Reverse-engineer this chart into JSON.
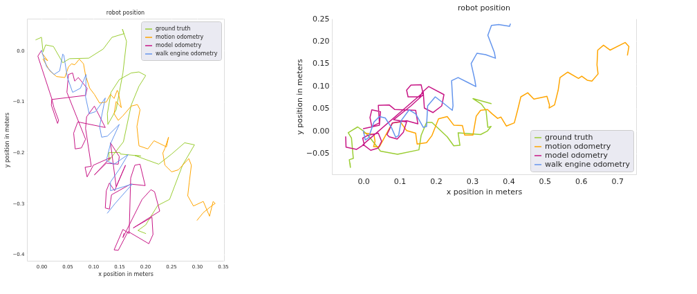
{
  "chart_data": [
    {
      "type": "line",
      "title": "robot position",
      "xlabel": "x position in meters",
      "ylabel": "y position in meters",
      "xlim": [
        -0.028,
        0.352
      ],
      "ylim": [
        -0.4125,
        0.0625
      ],
      "xticks": [
        {
          "value": 0,
          "label": "0.00"
        },
        0.05,
        {
          "value": 0.1,
          "label": "0.10"
        },
        0.15,
        {
          "value": 0.2,
          "label": "0.20"
        },
        0.25,
        {
          "value": 0.3,
          "label": "0.30"
        },
        0.35
      ],
      "yticks": [
        {
          "value": 0,
          "label": "0.0"
        },
        {
          "value": -0.1,
          "label": "−0.1"
        },
        {
          "value": -0.2,
          "label": "−0.2"
        },
        {
          "value": -0.3,
          "label": "−0.3"
        },
        {
          "value": -0.4,
          "label": "−0.4"
        }
      ],
      "grid": true,
      "legend": "top right",
      "marker": "none",
      "line_style": "solid",
      "series": [
        {
          "name": "ground truth",
          "color": "#9acd32",
          "x": [
            -0.011,
            0.0,
            0.003,
            0.008,
            0.023,
            0.041,
            0.054,
            0.091,
            0.119,
            0.136,
            0.159,
            0.156,
            0.164,
            0.157,
            0.15,
            0.144,
            0.128,
            0.127,
            0.134,
            0.15,
            0.173,
            0.188,
            0.201,
            0.188,
            0.173,
            0.158,
            0.142,
            0.13,
            0.13,
            0.151,
            0.152,
            0.192,
            0.18,
            0.226,
            0.251,
            0.276,
            0.295,
            0.272,
            0.247,
            0.224,
            0.201,
            0.186,
            0.201
          ],
          "values": [
            0.021,
            0.026,
            -0.003,
            0.011,
            0.008,
            -0.024,
            -0.016,
            -0.015,
            0.003,
            0.026,
            0.033,
            0.042,
            0.018,
            -0.044,
            -0.082,
            -0.116,
            -0.145,
            -0.124,
            -0.082,
            -0.057,
            -0.044,
            -0.042,
            -0.049,
            -0.07,
            -0.107,
            -0.179,
            -0.2,
            -0.216,
            -0.2,
            -0.2,
            -0.203,
            -0.207,
            -0.206,
            -0.223,
            -0.203,
            -0.181,
            -0.185,
            -0.225,
            -0.292,
            -0.304,
            -0.342,
            -0.353,
            -0.359
          ]
        },
        {
          "name": "motion odometry",
          "color": "#ffa500",
          "x": [
            0.001,
            0.012,
            0.005,
            0.003,
            0.016,
            0.029,
            0.045,
            0.052,
            0.058,
            0.064,
            0.073,
            0.081,
            0.085,
            0.093,
            0.102,
            0.112,
            0.125,
            0.133,
            0.14,
            0.146,
            0.148,
            0.154,
            0.144,
            0.14,
            0.148,
            0.157,
            0.173,
            0.185,
            0.19,
            0.184,
            0.188,
            0.205,
            0.217,
            0.241,
            0.245,
            0.238,
            0.234,
            0.238,
            0.251,
            0.264,
            0.284,
            0.289,
            0.285,
            0.282,
            0.293,
            0.312,
            0.324,
            0.331,
            0.335,
            0.329,
            0.312,
            0.3
          ],
          "values": [
            -0.005,
            -0.02,
            -0.015,
            -0.017,
            -0.04,
            -0.051,
            -0.053,
            -0.032,
            -0.026,
            -0.028,
            -0.017,
            -0.026,
            -0.049,
            -0.074,
            -0.086,
            -0.103,
            -0.101,
            -0.086,
            -0.094,
            -0.078,
            -0.082,
            -0.112,
            -0.1,
            -0.124,
            -0.137,
            -0.128,
            -0.109,
            -0.106,
            -0.116,
            -0.149,
            -0.187,
            -0.193,
            -0.177,
            -0.189,
            -0.17,
            -0.192,
            -0.201,
            -0.225,
            -0.238,
            -0.234,
            -0.212,
            -0.225,
            -0.258,
            -0.285,
            -0.305,
            -0.296,
            -0.325,
            -0.296,
            -0.3,
            -0.304,
            -0.318,
            -0.333
          ]
        },
        {
          "name": "model odometry",
          "color": "#c71585",
          "x": [
            0.0,
            -0.007,
            0.02,
            0.019,
            0.031,
            0.033,
            0.024,
            0.02,
            0.085,
            0.088,
            0.071,
            0.064,
            0.06,
            0.052,
            0.049,
            0.085,
            0.077,
            0.065,
            0.062,
            0.07,
            0.123,
            0.102,
            0.087,
            0.085,
            0.096,
            0.084,
            0.088,
            0.1,
            0.133,
            0.102,
            0.125,
            0.148,
            0.15,
            0.133,
            0.144,
            0.162,
            0.141,
            0.131,
            0.125,
            0.123,
            0.131,
            0.135,
            0.172,
            0.2,
            0.19,
            0.18,
            0.172,
            0.169,
            0.157,
            0.14,
            0.148,
            0.167,
            0.207,
            0.215,
            0.213,
            0.177,
            0.228,
            0.218,
            0.211,
            0.194,
            0.157,
            0.159
          ],
          "values": [
            0.0,
            -0.011,
            -0.095,
            -0.107,
            -0.143,
            -0.137,
            -0.112,
            -0.096,
            -0.088,
            -0.074,
            -0.053,
            -0.06,
            -0.044,
            -0.047,
            -0.082,
            -0.174,
            -0.191,
            -0.193,
            -0.162,
            -0.14,
            -0.151,
            -0.109,
            -0.13,
            -0.153,
            -0.227,
            -0.229,
            -0.248,
            -0.225,
            -0.21,
            -0.244,
            -0.221,
            -0.223,
            -0.208,
            -0.181,
            -0.267,
            -0.225,
            -0.275,
            -0.26,
            -0.275,
            -0.309,
            -0.311,
            -0.283,
            -0.262,
            -0.265,
            -0.223,
            -0.225,
            -0.25,
            -0.359,
            -0.351,
            -0.391,
            -0.392,
            -0.355,
            -0.379,
            -0.361,
            -0.327,
            -0.348,
            -0.315,
            -0.277,
            -0.273,
            -0.292,
            -0.367,
            -0.359
          ]
        },
        {
          "name": "walk engine odometry",
          "color": "#6495ed",
          "x": [
            0.0,
            0.01,
            0.024,
            0.035,
            0.041,
            0.043,
            0.05,
            0.06,
            0.075,
            0.086,
            0.085,
            0.092,
            0.104,
            0.123,
            0.112,
            0.116,
            0.127,
            0.15,
            0.133,
            0.125,
            0.14,
            0.167,
            0.15,
            0.133,
            0.133,
            0.146,
            0.175,
            0.142,
            0.127
          ],
          "values": [
            0.0,
            -0.032,
            -0.047,
            -0.04,
            -0.007,
            -0.009,
            -0.053,
            -0.082,
            -0.074,
            -0.047,
            -0.091,
            -0.124,
            -0.12,
            -0.093,
            -0.149,
            -0.17,
            -0.168,
            -0.145,
            -0.183,
            -0.216,
            -0.223,
            -0.204,
            -0.233,
            -0.258,
            -0.275,
            -0.271,
            -0.262,
            -0.3,
            -0.319
          ]
        }
      ]
    },
    {
      "type": "line",
      "title": "robot position",
      "xlabel": "x position in meters",
      "ylabel": "y position in meters",
      "xlim": [
        -0.087,
        0.752
      ],
      "ylim": [
        -0.0965,
        0.25
      ],
      "xticks": [
        {
          "value": 0,
          "label": "0.0"
        },
        0.1,
        0.2,
        0.3,
        0.4,
        0.5,
        0.6,
        0.7
      ],
      "yticks": [
        {
          "value": -0.05,
          "label": "−0.05"
        },
        {
          "value": 0,
          "label": "0.00"
        },
        0.05,
        {
          "value": 0.1,
          "label": "0.10"
        },
        0.15,
        {
          "value": 0.2,
          "label": "0.20"
        },
        0.25
      ],
      "grid": true,
      "legend": "bottom right",
      "marker": "none",
      "line_style": "solid",
      "series": [
        {
          "name": "ground truth",
          "color": "#9acd32",
          "x": [
            -0.037,
            -0.036,
            -0.039,
            -0.028,
            -0.033,
            -0.042,
            -0.016,
            0.0,
            0.016,
            0.047,
            0.094,
            0.153,
            0.159,
            0.174,
            0.189,
            0.231,
            0.249,
            0.266,
            0.261,
            0.323,
            0.342,
            0.352,
            0.343,
            0.338,
            0.325,
            0.302,
            0.352
          ],
          "values": [
            -0.072,
            -0.081,
            -0.064,
            -0.061,
            -0.016,
            -0.004,
            0.009,
            0.0,
            -0.013,
            -0.045,
            -0.052,
            -0.042,
            -0.01,
            0.019,
            0.019,
            -0.013,
            -0.033,
            -0.032,
            -0.004,
            -0.008,
            0.0,
            0.01,
            0.008,
            0.046,
            0.06,
            0.072,
            0.061
          ]
        },
        {
          "name": "motion odometry",
          "color": "#ffa500",
          "x": [
            0.0,
            0.029,
            0.032,
            0.028,
            0.044,
            0.065,
            0.08,
            0.102,
            0.119,
            0.144,
            0.148,
            0.174,
            0.189,
            0.207,
            0.231,
            0.249,
            0.273,
            0.279,
            0.302,
            0.311,
            0.323,
            0.342,
            0.355,
            0.37,
            0.379,
            0.394,
            0.416,
            0.425,
            0.434,
            0.453,
            0.47,
            0.506,
            0.513,
            0.512,
            0.527,
            0.537,
            0.542,
            0.563,
            0.593,
            0.602,
            0.617,
            0.63,
            0.647,
            0.644,
            0.646,
            0.662,
            0.68,
            0.722,
            0.732,
            0.728
          ],
          "values": [
            -0.004,
            -0.008,
            -0.023,
            -0.035,
            -0.035,
            -0.004,
            0.018,
            0.02,
            0.001,
            -0.005,
            -0.029,
            -0.026,
            -0.01,
            0.027,
            0.032,
            0.013,
            0.012,
            -0.009,
            -0.009,
            0.033,
            0.046,
            0.048,
            0.038,
            0.028,
            0.031,
            0.011,
            0.018,
            0.046,
            0.076,
            0.085,
            0.071,
            0.077,
            0.058,
            0.051,
            0.058,
            0.091,
            0.119,
            0.131,
            0.117,
            0.122,
            0.113,
            0.111,
            0.127,
            0.147,
            0.18,
            0.191,
            0.18,
            0.197,
            0.188,
            0.169
          ]
        },
        {
          "name": "model odometry",
          "color": "#c71585",
          "x": [
            -0.049,
            -0.048,
            -0.019,
            0.002,
            -0.002,
            0.011,
            0.041,
            0.05,
            0.041,
            0.02,
            -0.001,
            0.165,
            0.168,
            0.192,
            0.216,
            0.222,
            0.18,
            0.162,
            0.156,
            0.123,
            0.119,
            0.131,
            0.159,
            0.165,
            0.131,
            0.083,
            0.119,
            0.11,
            0.093,
            0.071,
            0.065,
            0.08,
            0.119,
            0.15,
            0.144,
            0.086,
            0.071,
            0.041,
            0.044,
            0.023,
            0.018,
            0.023,
            0.047,
            0.044,
            0.0
          ],
          "values": [
            -0.013,
            -0.036,
            -0.041,
            -0.03,
            -0.016,
            -0.01,
            -0.005,
            -0.023,
            -0.038,
            -0.043,
            -0.03,
            0.086,
            0.051,
            0.041,
            0.056,
            0.081,
            0.099,
            0.086,
            0.076,
            0.076,
            0.091,
            0.102,
            0.103,
            0.081,
            0.056,
            0.025,
            0.02,
            -0.003,
            -0.018,
            -0.013,
            -0.008,
            0.018,
            0.023,
            0.016,
            0.046,
            0.048,
            0.058,
            0.057,
            0.018,
            0.01,
            0.03,
            0.047,
            0.043,
            0.013,
            0.005
          ]
        },
        {
          "name": "walk engine odometry",
          "color": "#6495ed",
          "x": [
            0.0,
            0.005,
            0.014,
            0.029,
            0.044,
            0.06,
            0.077,
            0.089,
            0.097,
            0.104,
            0.126,
            0.144,
            0.165,
            0.174,
            0.177,
            0.198,
            0.222,
            0.245,
            0.247,
            0.243,
            0.261,
            0.288,
            0.31,
            0.307,
            0.297,
            0.313,
            0.337,
            0.364,
            0.361,
            0.343,
            0.353,
            0.373,
            0.403,
            0.405
          ],
          "values": [
            0.0,
            -0.02,
            -0.015,
            0.02,
            0.032,
            0.029,
            0.008,
            -0.014,
            -0.01,
            0.023,
            0.047,
            0.038,
            0.008,
            0.01,
            0.056,
            0.076,
            0.061,
            0.046,
            0.056,
            0.112,
            0.119,
            0.108,
            0.099,
            0.114,
            0.15,
            0.173,
            0.17,
            0.162,
            0.175,
            0.213,
            0.235,
            0.237,
            0.233,
            0.238
          ]
        }
      ]
    }
  ]
}
